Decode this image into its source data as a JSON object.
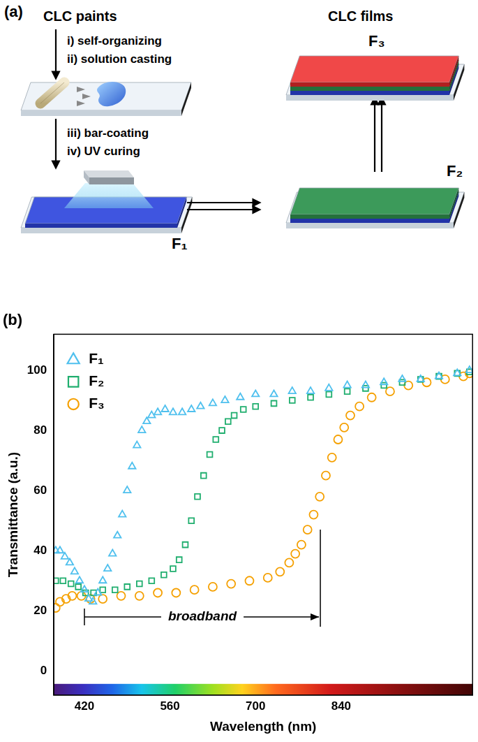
{
  "panel_a": {
    "label": "(a)",
    "title_left": "CLC paints",
    "title_right": "CLC films",
    "steps_1": [
      "i) self-organizing",
      "ii) solution casting"
    ],
    "steps_2": [
      "iii) bar-coating",
      "iv) UV curing"
    ],
    "films": [
      "F₁",
      "F₂",
      "F₃"
    ]
  },
  "chart_data": {
    "type": "scatter",
    "title": "(b)",
    "x_label": "Wavelength (nm)",
    "y_label": "Transmittance (a.u.)",
    "xlim": [
      370,
      1055
    ],
    "xticks": [
      420,
      560,
      700,
      840
    ],
    "ylim": [
      -8,
      112
    ],
    "yticks": [
      0,
      20,
      40,
      60,
      80,
      100
    ],
    "grid": false,
    "legend": "upper left",
    "annotations": [
      {
        "text": "broadband",
        "x_start": 420,
        "x_end": 806,
        "y": 18
      }
    ],
    "series": [
      {
        "name": "F₁",
        "color": "#4fc0ee",
        "marker": "triangle",
        "x": [
          373,
          380,
          388,
          396,
          404,
          412,
          420,
          427,
          434,
          442,
          450,
          458,
          466,
          474,
          482,
          490,
          498,
          506,
          514,
          522,
          530,
          540,
          552,
          565,
          580,
          595,
          610,
          630,
          650,
          675,
          700,
          730,
          760,
          790,
          820,
          850,
          880,
          910,
          940,
          970,
          1000,
          1030,
          1050
        ],
        "values": [
          40,
          40,
          38,
          36,
          33,
          30,
          27,
          24,
          23,
          26,
          30,
          34,
          39,
          45,
          52,
          60,
          68,
          75,
          80,
          83,
          85,
          86,
          87,
          86,
          86,
          87,
          88,
          89,
          90,
          91,
          92,
          92,
          93,
          93,
          94,
          95,
          95,
          96,
          97,
          97,
          98,
          99,
          100
        ]
      },
      {
        "name": "F₂",
        "color": "#1fae6e",
        "marker": "square",
        "x": [
          373,
          385,
          398,
          410,
          422,
          435,
          450,
          470,
          490,
          510,
          530,
          550,
          565,
          575,
          585,
          595,
          605,
          615,
          625,
          635,
          645,
          655,
          665,
          680,
          700,
          730,
          760,
          790,
          820,
          850,
          880,
          910,
          940,
          970,
          1000,
          1030,
          1050
        ],
        "values": [
          30,
          30,
          29,
          28,
          26,
          26,
          27,
          27,
          28,
          29,
          30,
          32,
          34,
          37,
          42,
          50,
          58,
          65,
          72,
          77,
          80,
          83,
          85,
          87,
          88,
          89,
          90,
          91,
          92,
          93,
          94,
          95,
          96,
          97,
          98,
          99,
          99.5
        ]
      },
      {
        "name": "F₃",
        "color": "#f5a000",
        "marker": "circle",
        "x": [
          373,
          380,
          390,
          400,
          415,
          430,
          450,
          480,
          510,
          540,
          570,
          600,
          630,
          660,
          690,
          720,
          740,
          755,
          765,
          775,
          785,
          795,
          805,
          815,
          825,
          835,
          845,
          855,
          870,
          890,
          920,
          950,
          980,
          1010,
          1040,
          1050
        ],
        "values": [
          21,
          23,
          24,
          25,
          25,
          24,
          24,
          25,
          25,
          26,
          26,
          27,
          28,
          29,
          30,
          31,
          33,
          36,
          39,
          42,
          47,
          52,
          58,
          65,
          71,
          77,
          81,
          85,
          88,
          91,
          93,
          95,
          96,
          97,
          98,
          99
        ]
      }
    ]
  }
}
